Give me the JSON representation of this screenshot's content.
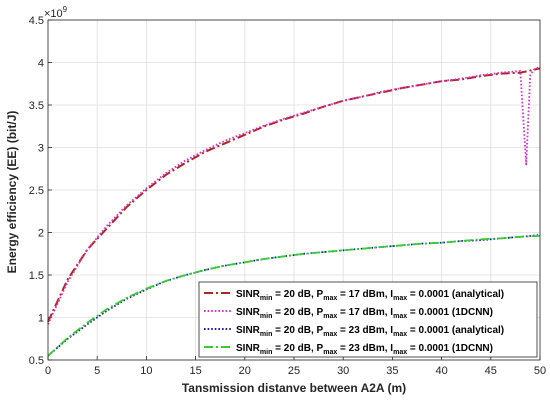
{
  "chart_data": {
    "type": "line",
    "title": "",
    "xlabel": "Tansmission distanve between A2A (m)",
    "ylabel": "Energy efficiency (EE) (bit/J)",
    "xlim": [
      0,
      50
    ],
    "ylim": [
      0.5,
      4.5
    ],
    "y_exponent_label": "×10",
    "y_exponent_power": "9",
    "y_multiplier": 1000000000,
    "grid": true,
    "legend_position": "bottom-right",
    "x_ticks": [
      "0",
      "5",
      "10",
      "15",
      "20",
      "25",
      "30",
      "35",
      "40",
      "45",
      "50"
    ],
    "y_ticks": [
      "0.5",
      "1",
      "1.5",
      "2",
      "2.5",
      "3",
      "3.5",
      "4",
      "4.5"
    ],
    "series": [
      {
        "legend": {
          "a": "SINR",
          "a_sub": "min",
          "b": " = 20 dB,  P",
          "b_sub": "max",
          "c": " = 17 dBm, I",
          "c_sub": "max",
          "d": " = 0.0001 (analytical)"
        },
        "color": "#b22222",
        "style": "dashdot",
        "x": [
          0,
          2,
          4,
          6,
          8,
          10,
          12,
          14,
          16,
          18,
          20,
          22,
          24,
          26,
          28,
          30,
          32,
          34,
          36,
          38,
          40,
          42,
          44,
          46,
          48,
          50
        ],
        "y": [
          0.95,
          1.45,
          1.8,
          2.05,
          2.3,
          2.5,
          2.68,
          2.82,
          2.95,
          3.05,
          3.15,
          3.25,
          3.33,
          3.4,
          3.48,
          3.55,
          3.6,
          3.65,
          3.7,
          3.74,
          3.78,
          3.8,
          3.84,
          3.87,
          3.88,
          3.93
        ]
      },
      {
        "legend": {
          "a": "SINR",
          "a_sub": "min",
          "b": " = 20 dB,  P",
          "b_sub": "max",
          "c": " =  17 dBm, I",
          "c_sub": "max",
          "d": " = 0.0001 (1DCNN)"
        },
        "color": "#cc33cc",
        "style": "dotted",
        "x": [
          0,
          2,
          4,
          6,
          8,
          10,
          12,
          14,
          16,
          18,
          20,
          22,
          24,
          26,
          28,
          30,
          32,
          34,
          36,
          38,
          40,
          42,
          44,
          46,
          48,
          48.6,
          49,
          49.4,
          50
        ],
        "y": [
          0.92,
          1.42,
          1.8,
          2.08,
          2.32,
          2.52,
          2.7,
          2.85,
          2.97,
          3.08,
          3.17,
          3.26,
          3.34,
          3.41,
          3.48,
          3.55,
          3.6,
          3.66,
          3.7,
          3.74,
          3.78,
          3.81,
          3.85,
          3.88,
          3.9,
          2.8,
          3.85,
          3.92,
          3.95
        ]
      },
      {
        "legend": {
          "a": "SINR",
          "a_sub": "min",
          "b": " = 20 dB,  P",
          "b_sub": "max",
          "c": " = 23 dBm, I",
          "c_sub": "max",
          "d": " = 0.0001 (analytical)"
        },
        "color": "#1a1aa8",
        "style": "dotted",
        "x": [
          0,
          2,
          4,
          6,
          8,
          10,
          12,
          14,
          16,
          18,
          20,
          22,
          24,
          26,
          28,
          30,
          32,
          34,
          36,
          38,
          40,
          42,
          44,
          46,
          48,
          50
        ],
        "y": [
          0.55,
          0.75,
          0.92,
          1.08,
          1.22,
          1.33,
          1.43,
          1.5,
          1.56,
          1.61,
          1.65,
          1.69,
          1.72,
          1.75,
          1.77,
          1.79,
          1.81,
          1.83,
          1.85,
          1.87,
          1.88,
          1.9,
          1.91,
          1.93,
          1.95,
          1.97
        ]
      },
      {
        "legend": {
          "a": "SINR",
          "a_sub": "min",
          "b": " = 20 dB,  P",
          "b_sub": "max",
          "c": " =  23 dBm, I",
          "c_sub": "max",
          "d": " = 0.0001 (1DCNN)"
        },
        "color": "#33cc33",
        "style": "dashdot",
        "x": [
          0,
          2,
          4,
          6,
          8,
          10,
          12,
          14,
          16,
          18,
          20,
          22,
          24,
          26,
          28,
          30,
          32,
          34,
          36,
          38,
          40,
          42,
          44,
          46,
          48,
          50
        ],
        "y": [
          0.55,
          0.76,
          0.94,
          1.1,
          1.23,
          1.34,
          1.43,
          1.5,
          1.56,
          1.61,
          1.65,
          1.69,
          1.72,
          1.75,
          1.77,
          1.79,
          1.81,
          1.83,
          1.85,
          1.87,
          1.88,
          1.9,
          1.92,
          1.93,
          1.95,
          1.96
        ]
      }
    ]
  }
}
